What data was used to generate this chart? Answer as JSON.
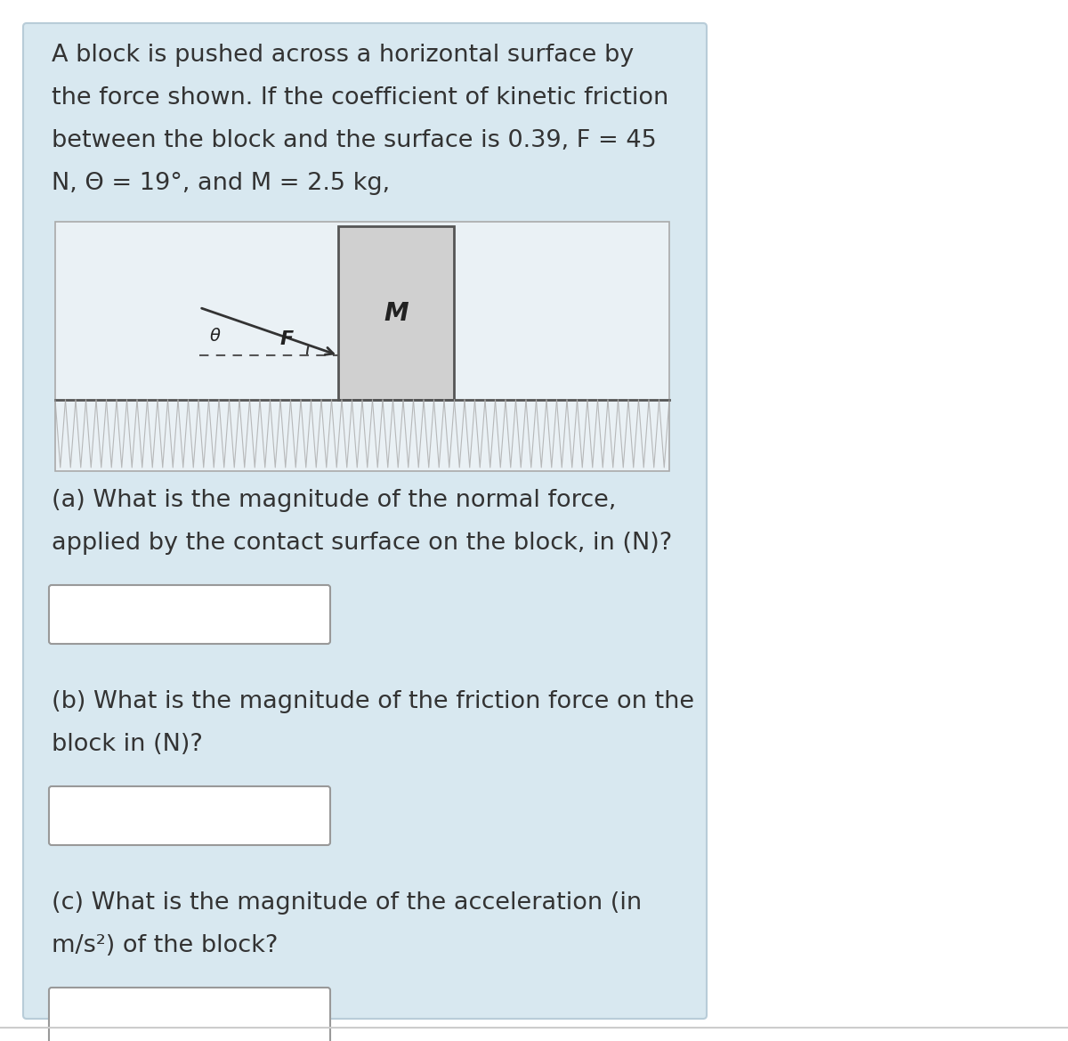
{
  "bg_color": "#d8e8f0",
  "white_bg": "#ffffff",
  "text_color": "#333333",
  "line1": "A block is pushed across a horizontal surface by",
  "line2": "the force shown. If the coefficient of kinetic friction",
  "line3": "between the block and the surface is 0.39, F = 45",
  "line4": "N, Θ = 19°, and M = 2.5 kg,",
  "part_a_line1": "(a) What is the magnitude of the normal force,",
  "part_a_line2": "applied by the contact surface on the block, in (N)?",
  "part_b_line1": "(b) What is the magnitude of the friction force on the",
  "part_b_line2": "block in (N)?",
  "part_c_line1": "(c) What is the magnitude of the acceleration (in",
  "part_c_line2": "m/s²) of the block?",
  "diagram_bg": "#eaf1f5",
  "block_color": "#d0d0d0",
  "block_edge": "#555555",
  "input_box_color": "#ffffff",
  "input_box_edge": "#999999",
  "ground_line_color": "#555555",
  "hatch_color": "#aaaaaa",
  "arrow_color": "#333333",
  "panel_edge": "#b8ccd8"
}
